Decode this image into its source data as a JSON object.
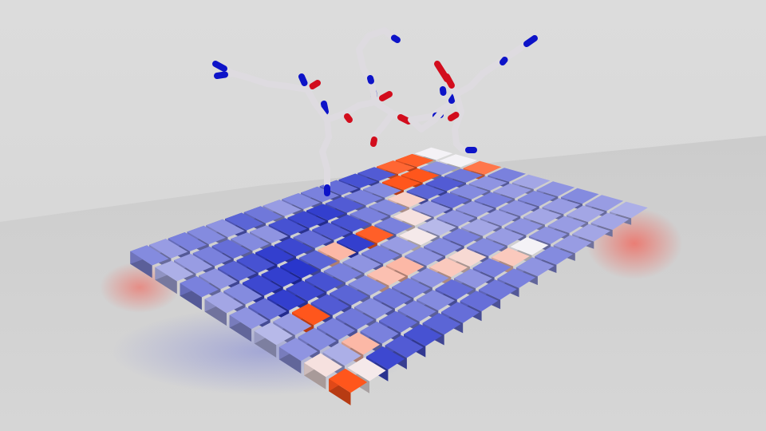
{
  "scene": {
    "kind": "3d-render",
    "subject": "peptide-over-heatmap",
    "colors": {
      "background": "#d9d9d9",
      "floor": "#cfcfcf",
      "carbon": "#dedbe0",
      "nitrogen": "#0d13c8",
      "oxygen": "#d20d1d",
      "cold": "#2733c2",
      "neutral": "#e8e6ea",
      "hot": "#ff4a10",
      "dark_red": "#8c2a2e"
    },
    "heatmap": {
      "rows": 9,
      "cols": 16,
      "values": [
        [
          -0.55,
          -0.45,
          -0.6,
          -0.55,
          -0.5,
          -0.75,
          -0.65,
          -0.45,
          -0.55,
          -0.6,
          -0.7,
          -0.85,
          -0.8,
          0.85,
          0.9,
          0.0
        ],
        [
          -0.35,
          -0.45,
          -0.6,
          -0.7,
          -0.55,
          -0.5,
          -0.85,
          -0.9,
          -0.95,
          -0.8,
          -0.6,
          -0.55,
          0.95,
          0.95,
          -0.5,
          0.0
        ],
        [
          -0.6,
          -0.5,
          -0.75,
          -0.85,
          -0.95,
          -0.9,
          -0.7,
          -0.8,
          -0.85,
          -0.6,
          -0.55,
          0.2,
          -0.75,
          -0.8,
          -0.65,
          0.75
        ],
        [
          -0.4,
          -0.55,
          -0.9,
          -0.95,
          -1.0,
          -0.75,
          0.35,
          -0.95,
          0.9,
          -0.6,
          0.1,
          -0.45,
          -0.7,
          -0.55,
          -0.5,
          -0.6
        ],
        [
          -0.5,
          -0.7,
          -0.95,
          -0.9,
          -0.85,
          -0.6,
          -0.5,
          -0.6,
          -0.45,
          0.05,
          -0.3,
          -0.5,
          -0.5,
          -0.6,
          -0.45,
          -0.4
        ],
        [
          -0.3,
          -0.45,
          0.95,
          -0.8,
          -0.75,
          -0.55,
          0.3,
          0.35,
          -0.5,
          -0.55,
          -0.6,
          -0.4,
          -0.45,
          -0.5,
          -0.55,
          -0.5
        ],
        [
          -0.5,
          -0.55,
          -0.6,
          -0.65,
          -0.55,
          -0.65,
          -0.6,
          -0.5,
          0.25,
          0.15,
          -0.55,
          -0.45,
          -0.5,
          -0.4,
          -0.45,
          -0.55
        ],
        [
          0.1,
          -0.35,
          0.35,
          -0.6,
          -0.7,
          -0.6,
          -0.55,
          -0.7,
          -0.5,
          -0.6,
          0.25,
          0.0,
          -0.5,
          -0.45,
          -0.4,
          -0.45
        ],
        [
          0.95,
          0.05,
          -0.9,
          -0.8,
          -0.85,
          -0.75,
          -0.7,
          -0.7,
          -0.65,
          -0.6,
          -0.5,
          -0.55,
          -0.45,
          -0.4,
          -0.4,
          -0.35
        ]
      ]
    },
    "peptide": {
      "representation": "sticks",
      "atom_types": [
        "C",
        "N",
        "O"
      ]
    }
  }
}
